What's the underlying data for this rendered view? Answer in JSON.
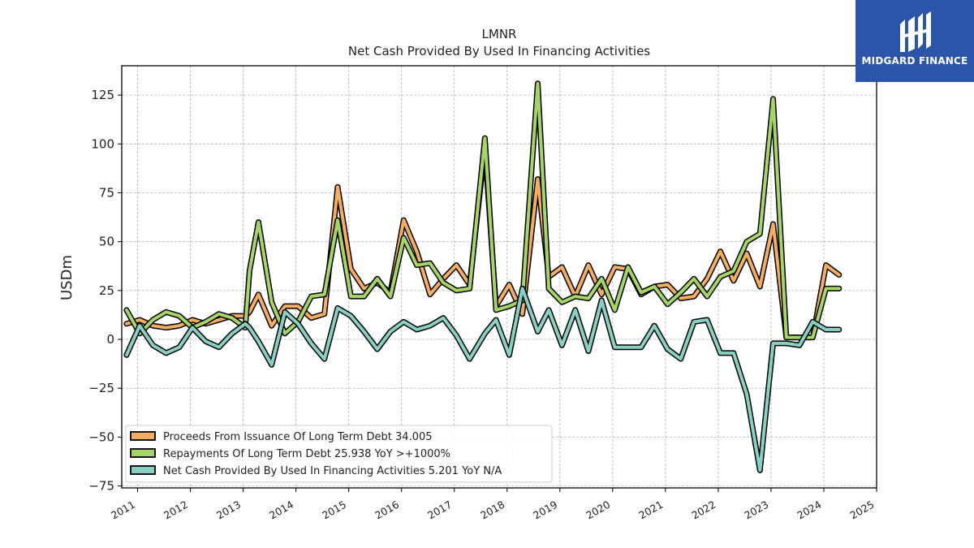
{
  "chart_data": {
    "type": "line",
    "title": "LMNR",
    "subtitle": "Net Cash Provided By Used In Financing Activities",
    "ylabel": "USDm",
    "xlabel": "",
    "ylim": [
      -76,
      140
    ],
    "xlim": [
      2010.7,
      2025.0
    ],
    "yticks": [
      -75,
      -50,
      -25,
      0,
      25,
      50,
      75,
      100,
      125
    ],
    "xticks": [
      2011,
      2012,
      2013,
      2014,
      2015,
      2016,
      2017,
      2018,
      2019,
      2020,
      2021,
      2022,
      2023,
      2024,
      2025
    ],
    "grid": true,
    "legend_position": "lower-left",
    "x": [
      2010.79,
      2011.04,
      2011.29,
      2011.54,
      2011.79,
      2012.04,
      2012.29,
      2012.54,
      2012.79,
      2013.04,
      2013.12,
      2013.29,
      2013.54,
      2013.79,
      2014.04,
      2014.29,
      2014.54,
      2014.79,
      2015.04,
      2015.29,
      2015.54,
      2015.79,
      2016.04,
      2016.29,
      2016.54,
      2016.79,
      2017.04,
      2017.29,
      2017.58,
      2017.79,
      2018.04,
      2018.29,
      2018.58,
      2018.79,
      2019.04,
      2019.29,
      2019.54,
      2019.79,
      2020.04,
      2020.29,
      2020.54,
      2020.79,
      2021.04,
      2021.29,
      2021.54,
      2021.79,
      2022.04,
      2022.29,
      2022.54,
      2022.79,
      2023.04,
      2023.29,
      2023.54,
      2023.79,
      2024.04,
      2024.29
    ],
    "series": [
      {
        "name": "Proceeds From Issuance Of Long Term Debt",
        "legend": "Proceeds From Issuance Of Long Term Debt  34.005",
        "color": "#f5ad61",
        "values": [
          8,
          10,
          7,
          6,
          7,
          10,
          8,
          10,
          12,
          12,
          14,
          23,
          7,
          17,
          17,
          11,
          13,
          78,
          36,
          26,
          29,
          24,
          61,
          45,
          23,
          31,
          38,
          28,
          98,
          17,
          28,
          13,
          82,
          32,
          37,
          22,
          38,
          23,
          37,
          36,
          23,
          27,
          28,
          21,
          22,
          31,
          45,
          30,
          44,
          27,
          59,
          1,
          1,
          1,
          38,
          33
        ]
      },
      {
        "name": "Repayments Of Long Term Debt",
        "legend": "Repayments Of Long Term Debt  25.938 YoY >+1000%",
        "color": "#a5d468",
        "values": [
          15,
          3,
          10,
          14,
          12,
          6,
          9,
          13,
          11,
          6,
          35,
          60,
          19,
          3,
          9,
          22,
          23,
          61,
          22,
          22,
          31,
          22,
          52,
          38,
          39,
          29,
          25,
          26,
          103,
          15,
          17,
          20,
          131,
          26,
          19,
          22,
          21,
          31,
          15,
          37,
          24,
          27,
          18,
          24,
          31,
          22,
          32,
          35,
          50,
          54,
          123,
          1,
          1,
          1,
          26,
          26
        ]
      },
      {
        "name": "Net Cash Provided By Used In Financing Activities",
        "legend": "Net Cash Provided By Used In Financing Activities  5.201 YoY N/A",
        "color": "#88d0c4",
        "values": [
          -8,
          7,
          -3,
          -7,
          -4,
          6,
          -1,
          -4,
          3,
          8,
          6,
          -1,
          -13,
          14,
          8,
          -2,
          -10,
          16,
          12,
          4,
          -5,
          4,
          9,
          5,
          7,
          11,
          2,
          -10,
          3,
          10,
          -8,
          26,
          4,
          15,
          -3,
          15,
          -6,
          20,
          -4,
          -4,
          -4,
          7,
          -5,
          -10,
          9,
          10,
          -7,
          -7,
          -28,
          -67,
          -2,
          -2,
          -3,
          9,
          5,
          5
        ]
      }
    ]
  },
  "logo": {
    "text": "MIDGARD FINANCE"
  }
}
